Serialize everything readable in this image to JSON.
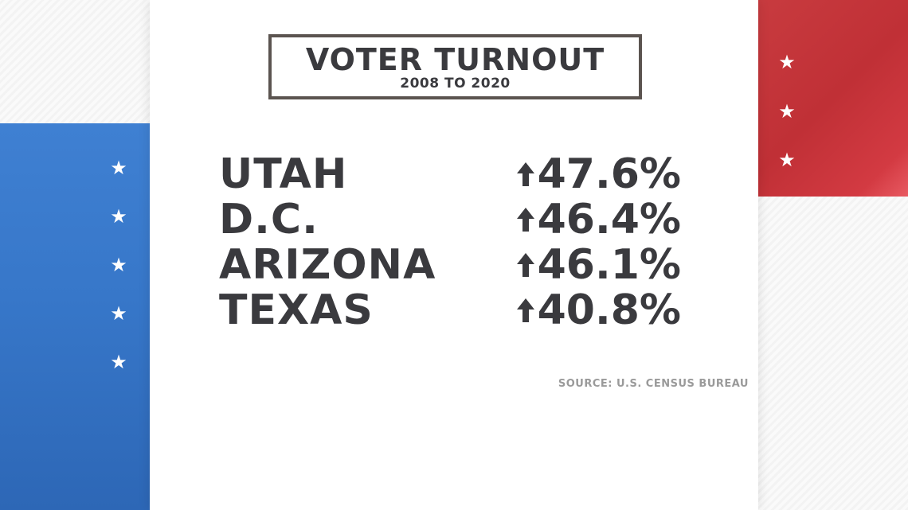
{
  "title": {
    "main": "VOTER TURNOUT",
    "sub": "2008 TO 2020"
  },
  "rows": [
    {
      "state": "UTAH",
      "change": "47.6%"
    },
    {
      "state": "D.C.",
      "change": "46.4%"
    },
    {
      "state": "ARIZONA",
      "change": "46.1%"
    },
    {
      "state": "TEXAS",
      "change": "40.8%"
    }
  ],
  "source": "SOURCE: U.S. CENSUS BUREAU",
  "colors": {
    "blue": "#3777c9",
    "red": "#c03036",
    "text": "#3a3a3e",
    "frame": "#5b5450"
  },
  "icons": {
    "star": "star-icon",
    "arrow": "arrow-up-icon"
  }
}
